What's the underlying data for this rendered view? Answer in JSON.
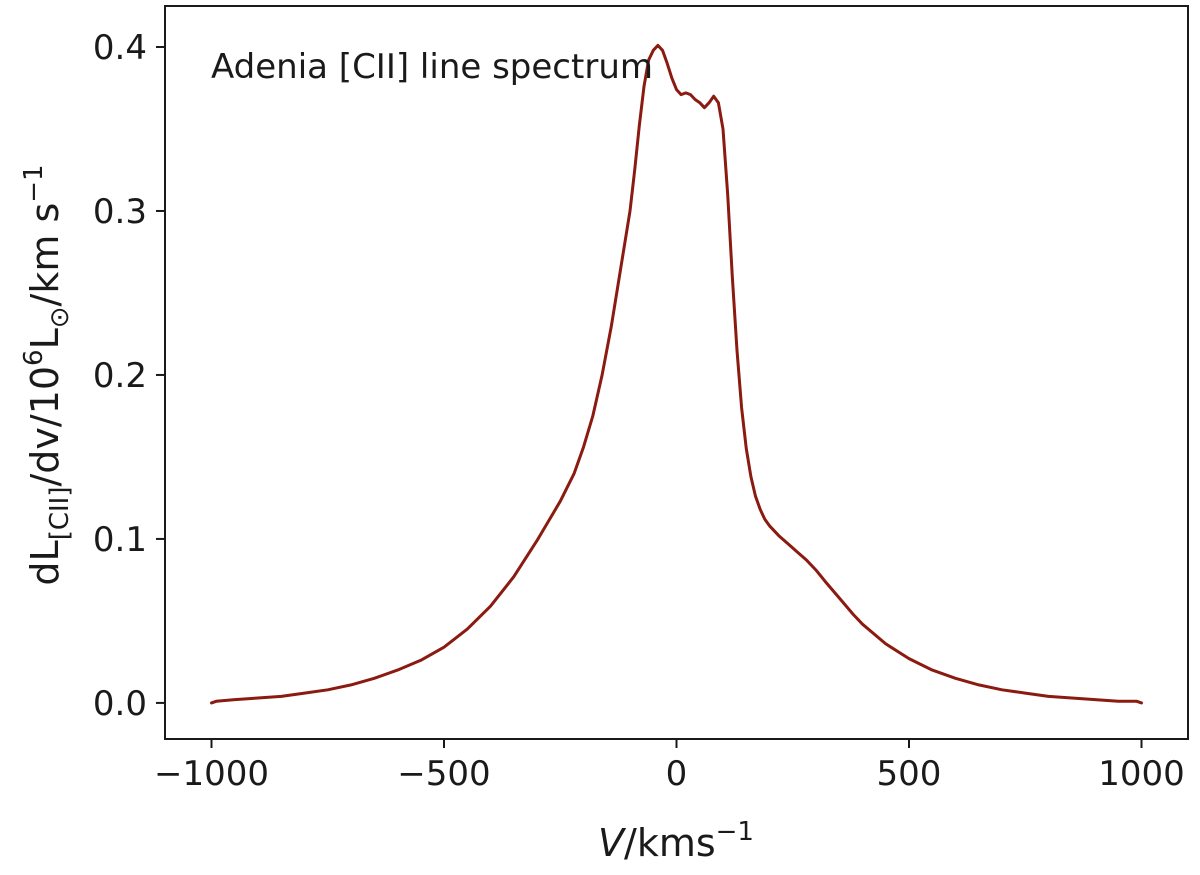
{
  "chart_data": {
    "type": "line",
    "title": "",
    "annotation": "Adenia [CII] line spectrum",
    "xlabel": {
      "main": "V",
      "unit": "/kms",
      "sup": "−1"
    },
    "ylabel": {
      "p1": "dL",
      "sub1": "[CII]",
      "p2": "/dv/10",
      "sup1": "6",
      "p3": "L",
      "sub2": "⊙",
      "p4": "/km s",
      "sup2": "−1"
    },
    "xlim": [
      -1100,
      1100
    ],
    "ylim": [
      -0.022,
      0.425
    ],
    "x_ticks": [
      -1000,
      -500,
      0,
      500,
      1000
    ],
    "x_tick_labels": [
      "−1000",
      "−500",
      "0",
      "500",
      "1000"
    ],
    "y_ticks": [
      0.0,
      0.1,
      0.2,
      0.3,
      0.4
    ],
    "y_tick_labels": [
      "0.0",
      "0.1",
      "0.2",
      "0.3",
      "0.4"
    ],
    "grid": false,
    "line_color": "#8b1a10",
    "series": [
      {
        "x": [
          -1000,
          -990,
          -950,
          -900,
          -850,
          -800,
          -750,
          -700,
          -650,
          -600,
          -550,
          -500,
          -450,
          -400,
          -350,
          -300,
          -250,
          -220,
          -200,
          -180,
          -160,
          -140,
          -120,
          -100,
          -90,
          -80,
          -70,
          -60,
          -50,
          -40,
          -30,
          -20,
          -10,
          0,
          10,
          20,
          30,
          40,
          50,
          60,
          70,
          80,
          90,
          100,
          110,
          120,
          130,
          140,
          150,
          160,
          170,
          180,
          190,
          200,
          210,
          220,
          240,
          260,
          280,
          300,
          320,
          350,
          380,
          400,
          450,
          500,
          550,
          600,
          650,
          700,
          750,
          800,
          850,
          900,
          950,
          990,
          1000
        ],
        "y": [
          0.0,
          0.001,
          0.002,
          0.003,
          0.004,
          0.006,
          0.008,
          0.011,
          0.015,
          0.02,
          0.026,
          0.034,
          0.045,
          0.059,
          0.077,
          0.099,
          0.123,
          0.14,
          0.156,
          0.175,
          0.2,
          0.23,
          0.265,
          0.3,
          0.325,
          0.352,
          0.376,
          0.392,
          0.398,
          0.401,
          0.398,
          0.39,
          0.381,
          0.374,
          0.371,
          0.372,
          0.371,
          0.368,
          0.366,
          0.363,
          0.366,
          0.37,
          0.366,
          0.35,
          0.31,
          0.26,
          0.215,
          0.18,
          0.155,
          0.138,
          0.126,
          0.118,
          0.112,
          0.108,
          0.105,
          0.102,
          0.097,
          0.092,
          0.087,
          0.081,
          0.074,
          0.064,
          0.054,
          0.048,
          0.036,
          0.027,
          0.02,
          0.015,
          0.011,
          0.008,
          0.006,
          0.004,
          0.003,
          0.002,
          0.001,
          0.001,
          0.0
        ]
      }
    ]
  }
}
